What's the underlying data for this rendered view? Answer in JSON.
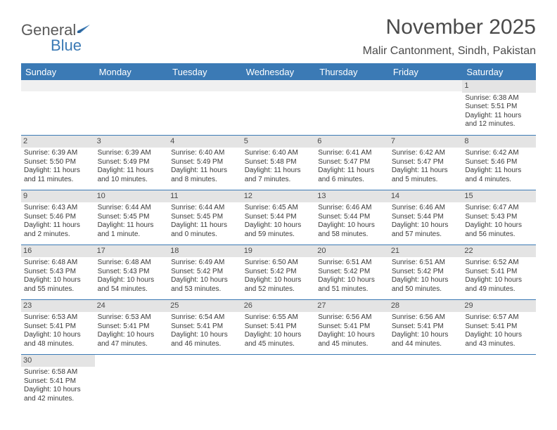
{
  "logo": {
    "part1": "General",
    "part2": "Blue"
  },
  "title": "November 2025",
  "location": "Malir Cantonment, Sindh, Pakistan",
  "colors": {
    "header_bg": "#3b7ab5",
    "header_text": "#ffffff",
    "date_bg": "#e4e4e4",
    "row_border": "#3b7ab5",
    "body_text": "#3a3a3a",
    "logo_gray": "#5a5a5a",
    "logo_blue": "#3b7ab5"
  },
  "day_names": [
    "Sunday",
    "Monday",
    "Tuesday",
    "Wednesday",
    "Thursday",
    "Friday",
    "Saturday"
  ],
  "weeks": [
    [
      null,
      null,
      null,
      null,
      null,
      null,
      {
        "d": "1",
        "sr": "Sunrise: 6:38 AM",
        "ss": "Sunset: 5:51 PM",
        "dl1": "Daylight: 11 hours",
        "dl2": "and 12 minutes."
      }
    ],
    [
      {
        "d": "2",
        "sr": "Sunrise: 6:39 AM",
        "ss": "Sunset: 5:50 PM",
        "dl1": "Daylight: 11 hours",
        "dl2": "and 11 minutes."
      },
      {
        "d": "3",
        "sr": "Sunrise: 6:39 AM",
        "ss": "Sunset: 5:49 PM",
        "dl1": "Daylight: 11 hours",
        "dl2": "and 10 minutes."
      },
      {
        "d": "4",
        "sr": "Sunrise: 6:40 AM",
        "ss": "Sunset: 5:49 PM",
        "dl1": "Daylight: 11 hours",
        "dl2": "and 8 minutes."
      },
      {
        "d": "5",
        "sr": "Sunrise: 6:40 AM",
        "ss": "Sunset: 5:48 PM",
        "dl1": "Daylight: 11 hours",
        "dl2": "and 7 minutes."
      },
      {
        "d": "6",
        "sr": "Sunrise: 6:41 AM",
        "ss": "Sunset: 5:47 PM",
        "dl1": "Daylight: 11 hours",
        "dl2": "and 6 minutes."
      },
      {
        "d": "7",
        "sr": "Sunrise: 6:42 AM",
        "ss": "Sunset: 5:47 PM",
        "dl1": "Daylight: 11 hours",
        "dl2": "and 5 minutes."
      },
      {
        "d": "8",
        "sr": "Sunrise: 6:42 AM",
        "ss": "Sunset: 5:46 PM",
        "dl1": "Daylight: 11 hours",
        "dl2": "and 4 minutes."
      }
    ],
    [
      {
        "d": "9",
        "sr": "Sunrise: 6:43 AM",
        "ss": "Sunset: 5:46 PM",
        "dl1": "Daylight: 11 hours",
        "dl2": "and 2 minutes."
      },
      {
        "d": "10",
        "sr": "Sunrise: 6:44 AM",
        "ss": "Sunset: 5:45 PM",
        "dl1": "Daylight: 11 hours",
        "dl2": "and 1 minute."
      },
      {
        "d": "11",
        "sr": "Sunrise: 6:44 AM",
        "ss": "Sunset: 5:45 PM",
        "dl1": "Daylight: 11 hours",
        "dl2": "and 0 minutes."
      },
      {
        "d": "12",
        "sr": "Sunrise: 6:45 AM",
        "ss": "Sunset: 5:44 PM",
        "dl1": "Daylight: 10 hours",
        "dl2": "and 59 minutes."
      },
      {
        "d": "13",
        "sr": "Sunrise: 6:46 AM",
        "ss": "Sunset: 5:44 PM",
        "dl1": "Daylight: 10 hours",
        "dl2": "and 58 minutes."
      },
      {
        "d": "14",
        "sr": "Sunrise: 6:46 AM",
        "ss": "Sunset: 5:44 PM",
        "dl1": "Daylight: 10 hours",
        "dl2": "and 57 minutes."
      },
      {
        "d": "15",
        "sr": "Sunrise: 6:47 AM",
        "ss": "Sunset: 5:43 PM",
        "dl1": "Daylight: 10 hours",
        "dl2": "and 56 minutes."
      }
    ],
    [
      {
        "d": "16",
        "sr": "Sunrise: 6:48 AM",
        "ss": "Sunset: 5:43 PM",
        "dl1": "Daylight: 10 hours",
        "dl2": "and 55 minutes."
      },
      {
        "d": "17",
        "sr": "Sunrise: 6:48 AM",
        "ss": "Sunset: 5:43 PM",
        "dl1": "Daylight: 10 hours",
        "dl2": "and 54 minutes."
      },
      {
        "d": "18",
        "sr": "Sunrise: 6:49 AM",
        "ss": "Sunset: 5:42 PM",
        "dl1": "Daylight: 10 hours",
        "dl2": "and 53 minutes."
      },
      {
        "d": "19",
        "sr": "Sunrise: 6:50 AM",
        "ss": "Sunset: 5:42 PM",
        "dl1": "Daylight: 10 hours",
        "dl2": "and 52 minutes."
      },
      {
        "d": "20",
        "sr": "Sunrise: 6:51 AM",
        "ss": "Sunset: 5:42 PM",
        "dl1": "Daylight: 10 hours",
        "dl2": "and 51 minutes."
      },
      {
        "d": "21",
        "sr": "Sunrise: 6:51 AM",
        "ss": "Sunset: 5:42 PM",
        "dl1": "Daylight: 10 hours",
        "dl2": "and 50 minutes."
      },
      {
        "d": "22",
        "sr": "Sunrise: 6:52 AM",
        "ss": "Sunset: 5:41 PM",
        "dl1": "Daylight: 10 hours",
        "dl2": "and 49 minutes."
      }
    ],
    [
      {
        "d": "23",
        "sr": "Sunrise: 6:53 AM",
        "ss": "Sunset: 5:41 PM",
        "dl1": "Daylight: 10 hours",
        "dl2": "and 48 minutes."
      },
      {
        "d": "24",
        "sr": "Sunrise: 6:53 AM",
        "ss": "Sunset: 5:41 PM",
        "dl1": "Daylight: 10 hours",
        "dl2": "and 47 minutes."
      },
      {
        "d": "25",
        "sr": "Sunrise: 6:54 AM",
        "ss": "Sunset: 5:41 PM",
        "dl1": "Daylight: 10 hours",
        "dl2": "and 46 minutes."
      },
      {
        "d": "26",
        "sr": "Sunrise: 6:55 AM",
        "ss": "Sunset: 5:41 PM",
        "dl1": "Daylight: 10 hours",
        "dl2": "and 45 minutes."
      },
      {
        "d": "27",
        "sr": "Sunrise: 6:56 AM",
        "ss": "Sunset: 5:41 PM",
        "dl1": "Daylight: 10 hours",
        "dl2": "and 45 minutes."
      },
      {
        "d": "28",
        "sr": "Sunrise: 6:56 AM",
        "ss": "Sunset: 5:41 PM",
        "dl1": "Daylight: 10 hours",
        "dl2": "and 44 minutes."
      },
      {
        "d": "29",
        "sr": "Sunrise: 6:57 AM",
        "ss": "Sunset: 5:41 PM",
        "dl1": "Daylight: 10 hours",
        "dl2": "and 43 minutes."
      }
    ],
    [
      {
        "d": "30",
        "sr": "Sunrise: 6:58 AM",
        "ss": "Sunset: 5:41 PM",
        "dl1": "Daylight: 10 hours",
        "dl2": "and 42 minutes."
      },
      null,
      null,
      null,
      null,
      null,
      null
    ]
  ]
}
